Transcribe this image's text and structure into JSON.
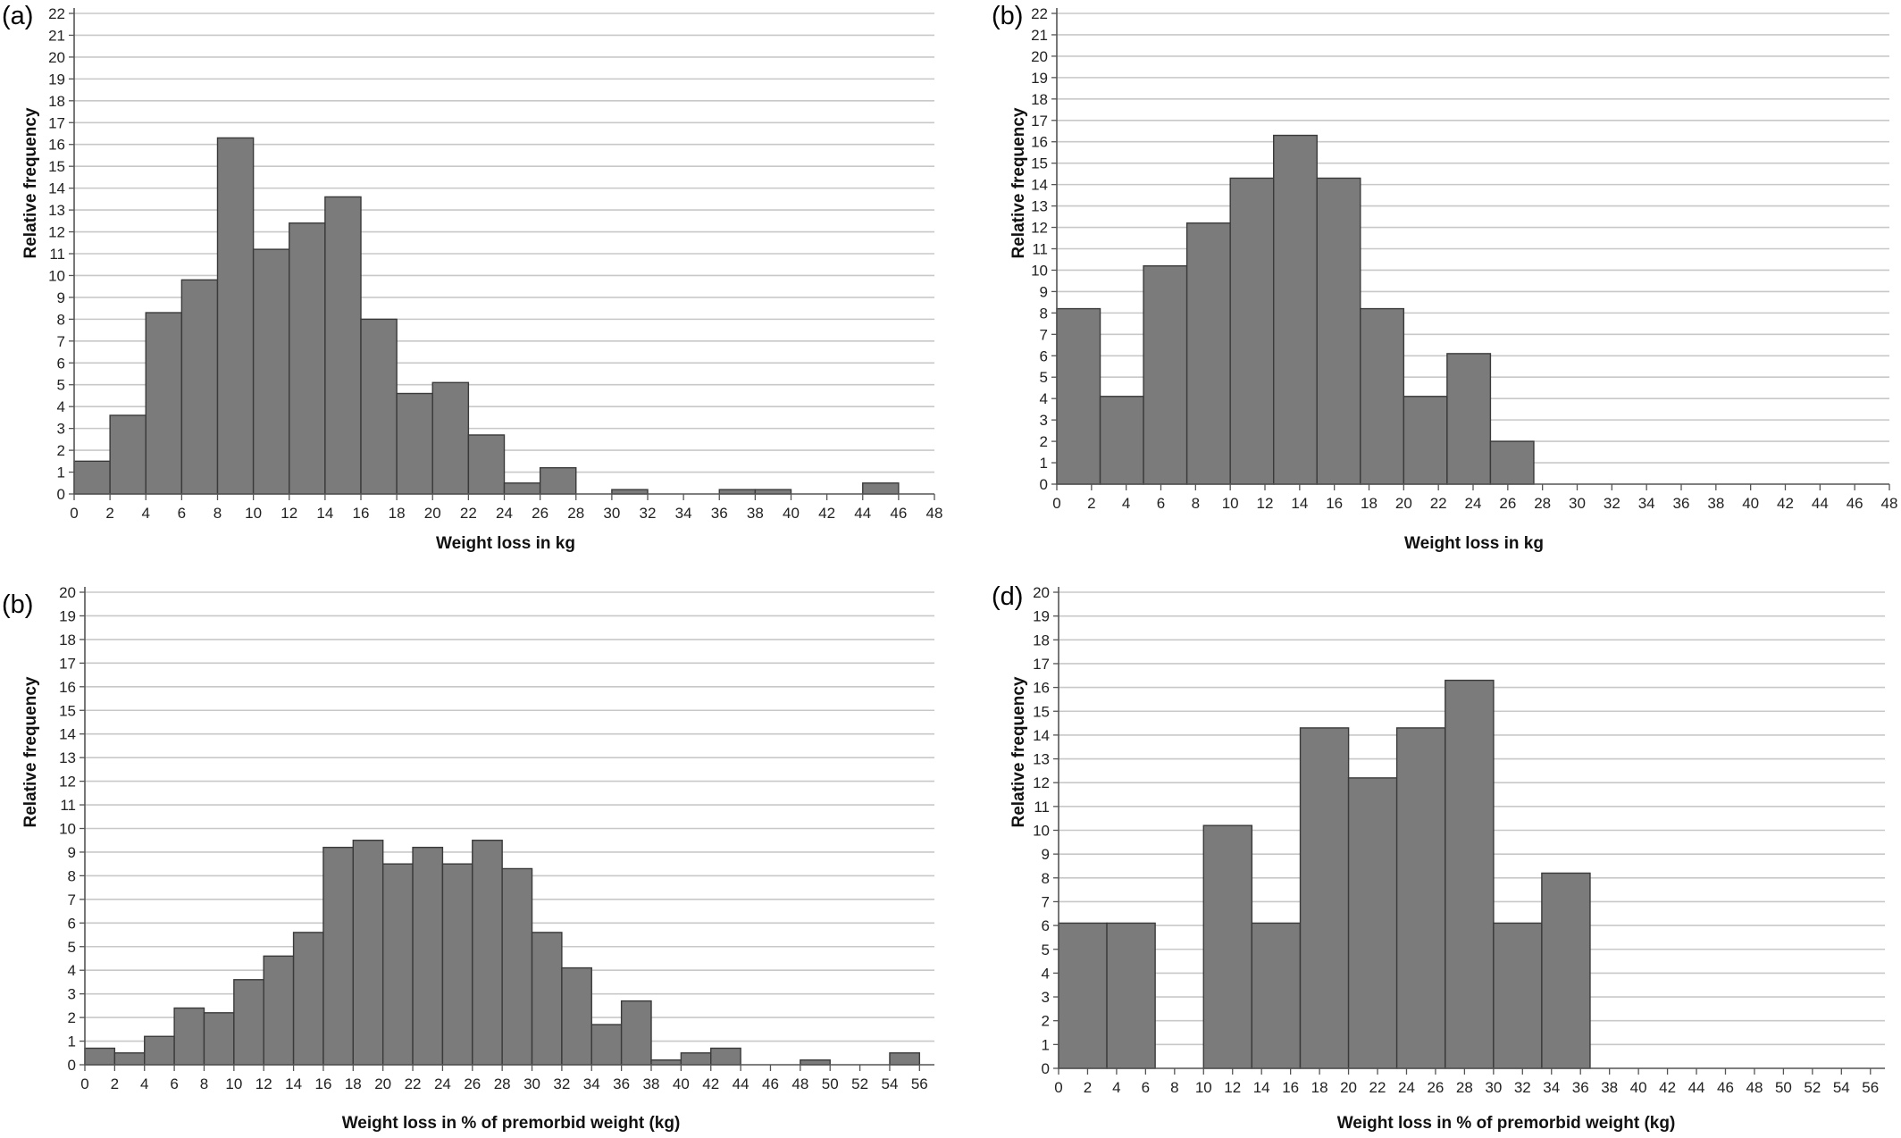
{
  "chart_data": [
    {
      "tag": "(a)",
      "type": "bar",
      "xlabel": "Weight loss in kg",
      "ylabel": "Relative frequency",
      "xlim": [
        0,
        48
      ],
      "ylim": [
        0,
        22
      ],
      "xstep": 2,
      "ystep": 1,
      "bins": [
        0,
        2,
        4,
        6,
        8,
        10,
        12,
        14,
        16,
        18,
        20,
        22,
        24,
        26,
        28,
        30,
        32,
        34,
        36,
        38,
        40,
        42,
        44,
        46
      ],
      "bin_width": 2,
      "values": [
        1.5,
        3.6,
        8.3,
        9.8,
        16.3,
        11.2,
        12.4,
        13.6,
        8.0,
        4.6,
        5.1,
        2.7,
        0.5,
        1.2,
        0,
        0.2,
        0,
        0,
        0.2,
        0.2,
        0,
        0,
        0.5,
        0
      ],
      "grid": true,
      "color": "#7b7b7b"
    },
    {
      "tag": "(b)",
      "type": "bar",
      "xlabel": "Weight loss in kg",
      "ylabel": "Relative frequency",
      "xlim": [
        0,
        48
      ],
      "ylim": [
        0,
        22
      ],
      "xstep": 2,
      "ystep": 1,
      "bins": [
        0,
        2.5,
        5,
        7.5,
        10,
        12.5,
        15,
        17.5,
        20,
        22.5,
        25
      ],
      "bin_width": 2.5,
      "values": [
        8.2,
        4.1,
        10.2,
        12.2,
        14.3,
        16.3,
        14.3,
        8.2,
        4.1,
        6.1,
        2.0
      ],
      "grid": true,
      "color": "#7b7b7b"
    },
    {
      "tag": "(b)",
      "type": "bar",
      "xlabel": "Weight loss in % of premorbid weight (kg)",
      "ylabel": "Relative frequency",
      "xlim": [
        0,
        57
      ],
      "ylim": [
        0,
        20
      ],
      "xstep": 2,
      "ystep": 1,
      "bins": [
        0,
        2,
        4,
        6,
        8,
        10,
        12,
        14,
        16,
        18,
        20,
        22,
        24,
        26,
        28,
        30,
        32,
        34,
        36,
        38,
        40,
        42,
        44,
        46,
        48,
        50,
        52,
        54
      ],
      "bin_width": 2,
      "values": [
        0.7,
        0.5,
        1.2,
        2.4,
        2.2,
        3.6,
        4.6,
        5.6,
        9.2,
        9.5,
        8.5,
        9.2,
        8.5,
        9.5,
        8.3,
        5.6,
        4.1,
        1.7,
        2.7,
        0.2,
        0.5,
        0.7,
        0,
        0,
        0.2,
        0,
        0,
        0.5
      ],
      "grid": true,
      "color": "#7b7b7b"
    },
    {
      "tag": "(d)",
      "type": "bar",
      "xlabel": "Weight loss in % of premorbid weight (kg)",
      "ylabel": "Relative frequency",
      "xlim": [
        0,
        57
      ],
      "ylim": [
        0,
        20
      ],
      "xstep": 2,
      "ystep": 1,
      "bins": [
        0,
        3.33,
        6.67,
        10,
        13.33,
        16.67,
        20,
        23.33,
        26.67,
        30,
        33.33
      ],
      "bin_width": 3.333,
      "values": [
        6.1,
        6.1,
        0,
        10.2,
        6.1,
        14.3,
        12.2,
        14.3,
        16.3,
        6.1,
        8.2
      ],
      "grid": true,
      "color": "#7b7b7b"
    }
  ]
}
